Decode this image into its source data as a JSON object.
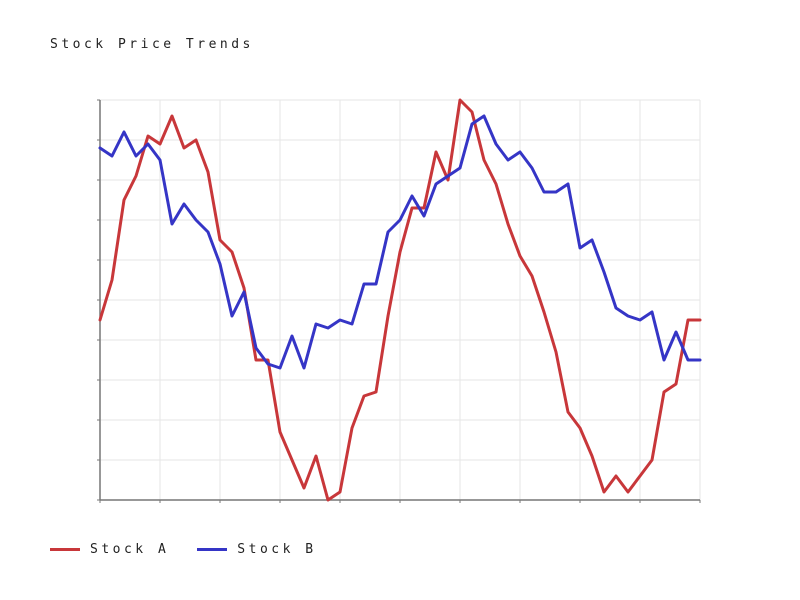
{
  "chart_data": {
    "type": "line",
    "title": "Stock Price Trends",
    "xlabel": "",
    "ylabel": "",
    "xlim": [
      0,
      50
    ],
    "ylim": [
      0,
      100
    ],
    "grid": true,
    "legend_position": "bottom-left",
    "x": [
      0,
      1,
      2,
      3,
      4,
      5,
      6,
      7,
      8,
      9,
      10,
      11,
      12,
      13,
      14,
      15,
      16,
      17,
      18,
      19,
      20,
      21,
      22,
      23,
      24,
      25,
      26,
      27,
      28,
      29,
      30,
      31,
      32,
      33,
      34,
      35,
      36,
      37,
      38,
      39,
      40,
      41,
      42,
      43,
      44,
      45,
      46,
      47,
      48,
      49,
      50
    ],
    "series": [
      {
        "name": "Stock A",
        "color": "#c8373a",
        "values": [
          45,
          55,
          75,
          81,
          91,
          89,
          96,
          88,
          90,
          82,
          65,
          62,
          53,
          35,
          35,
          17,
          10,
          3,
          11,
          0,
          2,
          18,
          26,
          27,
          46,
          62,
          73,
          73,
          87,
          80,
          100,
          97,
          85,
          79,
          69,
          61,
          56,
          47,
          37,
          22,
          18,
          11,
          2,
          6,
          2,
          6,
          10,
          27,
          29,
          45,
          45
        ]
      },
      {
        "name": "Stock B",
        "color": "#3535c6",
        "values": [
          88,
          86,
          92,
          86,
          89,
          85,
          69,
          74,
          70,
          67,
          59,
          46,
          52,
          38,
          34,
          33,
          41,
          33,
          44,
          43,
          45,
          44,
          54,
          54,
          67,
          70,
          76,
          71,
          79,
          81,
          83,
          94,
          96,
          89,
          85,
          87,
          83,
          77,
          77,
          79,
          63,
          65,
          57,
          48,
          46,
          45,
          47,
          35,
          42,
          35,
          35
        ]
      }
    ]
  }
}
